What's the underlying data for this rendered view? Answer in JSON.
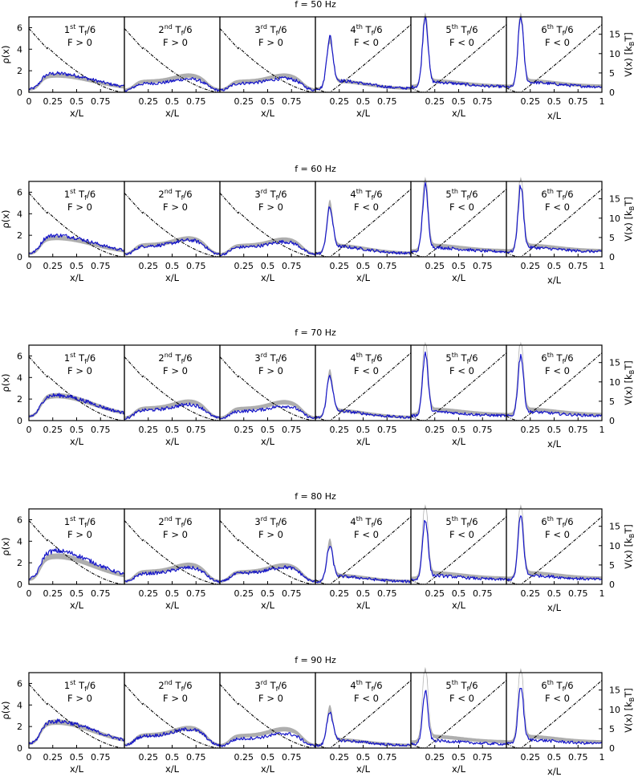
{
  "chart_data": {
    "type": "line",
    "frequencies": [
      "f = 50 Hz",
      "f = 60 Hz",
      "f = 70 Hz",
      "f = 80 Hz",
      "f = 90 Hz"
    ],
    "panel_labels": [
      {
        "ord": "1",
        "sup": "st",
        "per": "T",
        "sub": "f",
        "den": "/6",
        "force": "F > 0"
      },
      {
        "ord": "2",
        "sup": "nd",
        "per": "T",
        "sub": "f",
        "den": "/6",
        "force": "F > 0"
      },
      {
        "ord": "3",
        "sup": "rd",
        "per": "T",
        "sub": "f",
        "den": "/6",
        "force": "F > 0"
      },
      {
        "ord": "4",
        "sup": "th",
        "per": "T",
        "sub": "f",
        "den": "/6",
        "force": "F < 0"
      },
      {
        "ord": "5",
        "sup": "th",
        "per": "T",
        "sub": "f",
        "den": "/6",
        "force": "F < 0"
      },
      {
        "ord": "6",
        "sup": "th",
        "per": "T",
        "sub": "f",
        "den": "/6",
        "force": "F < 0"
      }
    ],
    "xlabel": "x/L",
    "ylabel_left": "ρ(x)",
    "ylabel_right_main": "V(x) [k",
    "ylabel_right_sub": "B",
    "ylabel_right_end": "T]",
    "xlim": [
      0,
      1
    ],
    "ylim_left": [
      0,
      7
    ],
    "ylim_right": [
      0,
      19.5
    ],
    "xticks_first": [
      "0",
      "0.25",
      "0.5",
      "0.75"
    ],
    "xticks": [
      "0.25",
      "0.5",
      "0.75"
    ],
    "xtick_last": "1",
    "yticks_left": [
      "0",
      "2",
      "4",
      "6"
    ],
    "yticks_right": [
      "0",
      "5",
      "10",
      "15"
    ],
    "colors": {
      "experiment": "#1515c8",
      "theory_band": "#aaaaaa",
      "potential": "#000000",
      "zero_line": "#000000"
    },
    "rows": [
      {
        "amps": [
          1.75,
          1.25,
          1.3,
          4.2,
          6.3,
          6.2
        ],
        "band_amps": [
          1.55,
          1.55,
          1.55,
          4.0,
          7.0,
          7.0
        ]
      },
      {
        "amps": [
          2.0,
          1.55,
          1.4,
          3.7,
          5.8,
          5.8
        ],
        "band_amps": [
          1.75,
          1.7,
          1.6,
          4.0,
          7.0,
          7.0
        ]
      },
      {
        "amps": [
          2.35,
          1.5,
          1.35,
          3.4,
          5.5,
          5.4
        ],
        "band_amps": [
          2.3,
          1.75,
          1.7,
          3.6,
          6.9,
          6.9
        ]
      },
      {
        "amps": [
          3.1,
          1.55,
          1.6,
          2.9,
          5.4,
          5.6
        ],
        "band_amps": [
          2.6,
          1.8,
          1.75,
          3.2,
          7.0,
          7.0
        ]
      },
      {
        "amps": [
          2.5,
          1.75,
          1.35,
          2.8,
          4.6,
          5.1
        ],
        "band_amps": [
          2.4,
          1.85,
          1.75,
          3.0,
          7.1,
          7.0
        ]
      }
    ]
  }
}
